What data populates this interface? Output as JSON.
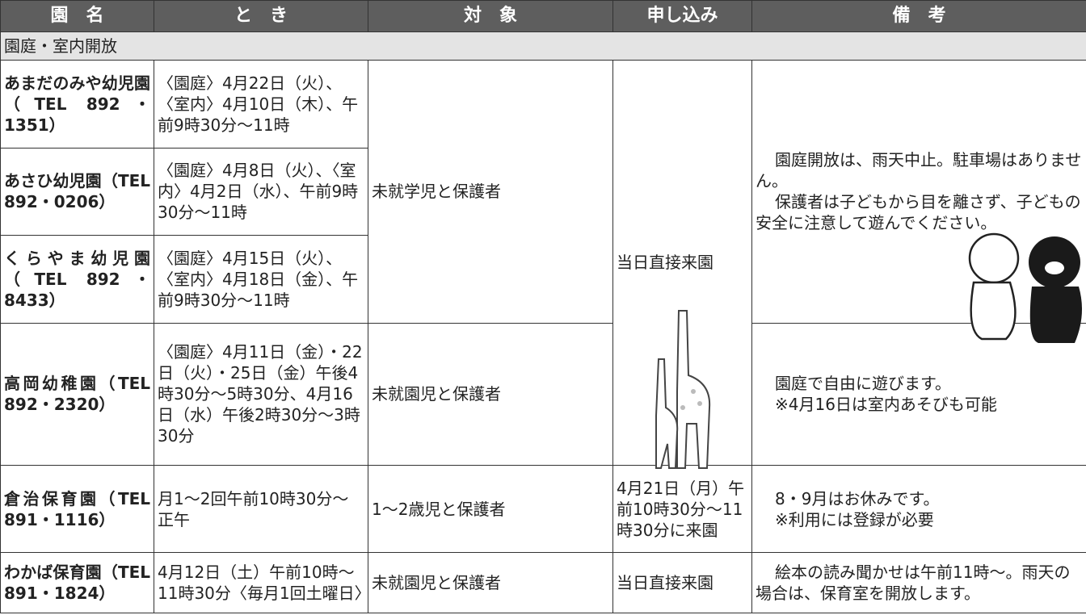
{
  "table": {
    "headers": [
      "園　名",
      "と　き",
      "対　象",
      "申し込み",
      "備　考"
    ],
    "section": "園庭・室内開放",
    "rows": [
      {
        "name": "あまだのみや幼児園",
        "tel": "（TEL 892・1351）",
        "date": "〈園庭〉4月22日（火）、〈室内〉4月10日（木）、午前9時30分～11時",
        "target": "未就学児と保護者",
        "apply": "当日直接来園",
        "notes": [
          "園庭開放は、雨天中止。駐車場はありません。",
          "保護者は子どもから目を離さず、子どもの安全に注意して遊んでください。"
        ]
      },
      {
        "name": "あさひ幼児園",
        "tel": "（TEL 892・0206）",
        "date": "〈園庭〉4月8日（火）、〈室内〉4月2日（水）、午前9時30分～11時"
      },
      {
        "name": "くらやま幼児園",
        "tel": "（TEL 892・8433）",
        "date": "〈園庭〉4月15日（火）、〈室内〉4月18日（金）、午前9時30分～11時"
      },
      {
        "name": "高岡幼稚園",
        "tel": "（TEL 892・2320）",
        "date": "〈園庭〉4月11日（金）・22日（火）・25日（金）午後4時30分～5時30分、4月16日（水）午後2時30分～3時30分",
        "target": "未就園児と保護者",
        "notes": [
          "園庭で自由に遊びます。",
          "※4月16日は室内あそびも可能"
        ]
      },
      {
        "name": "倉治保育園",
        "tel": "（TEL 891・1116）",
        "date": "月1～2回午前10時30分～正午",
        "target": "1～2歳児と保護者",
        "apply": "4月21日（月）午前10時30分～11時30分に来園",
        "notes": [
          "8・9月はお休みです。",
          "※利用には登録が必要"
        ]
      },
      {
        "name": "わかば保育園",
        "tel": "（TEL 891・1824）",
        "date": "4月12日（土）午前10時～11時30分〈毎月1回土曜日〉",
        "target": "未就園児と保護者",
        "apply": "当日直接来園",
        "notes": [
          "絵本の読み聞かせは午前11時～。雨天の場合は、保育室を開放します。"
        ]
      }
    ]
  }
}
